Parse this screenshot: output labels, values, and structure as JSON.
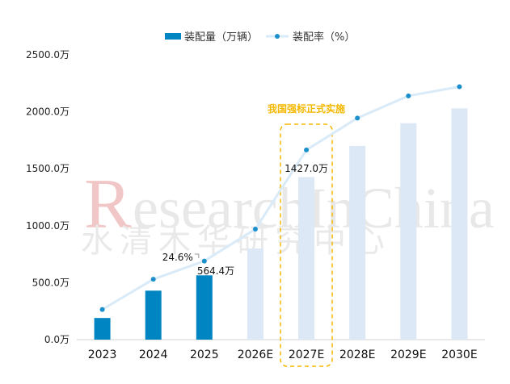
{
  "chart_data": {
    "type": "bar+line",
    "categories": [
      "2023",
      "2024",
      "2025",
      "2026E",
      "2027E",
      "2028E",
      "2029E",
      "2030E"
    ],
    "series": [
      {
        "name": "装配量（万辆）",
        "type": "bar",
        "values": [
          190,
          430,
          564.4,
          800,
          1427.0,
          1700,
          1900,
          2030
        ],
        "actual_count": 3
      },
      {
        "name": "装配率（%）",
        "type": "line",
        "values_in_bar_units": [
          265,
          530,
          690,
          970,
          1665,
          1945,
          2140,
          2220
        ]
      }
    ],
    "ylim": [
      0,
      2500
    ],
    "y_ticks": [
      "0.0万",
      "500.0万",
      "1000.0万",
      "1500.0万",
      "2000.0万",
      "2500.0万"
    ],
    "y_tick_values": [
      0,
      500,
      1000,
      1500,
      2000,
      2500
    ],
    "data_labels": [
      {
        "index": 2,
        "text": "564.4万"
      },
      {
        "index": 2,
        "text": "24.6%"
      },
      {
        "index": 4,
        "text": "1427.0万"
      }
    ],
    "annotation": {
      "index": 4,
      "text": "我国强标正式实施",
      "color": "#F5B800"
    },
    "legend_position": "top-center",
    "grid": false,
    "colors": {
      "bar_actual": "#0085C3",
      "bar_forecast": "#DCE8F5",
      "line": "#D9EAF8",
      "marker": "#1A8FCB",
      "annotation": "#F5B800"
    }
  },
  "watermark": {
    "text_en_prefix": "R",
    "text_en_rest": "esearchInChina",
    "text_cn": "水清木华研究中心"
  }
}
